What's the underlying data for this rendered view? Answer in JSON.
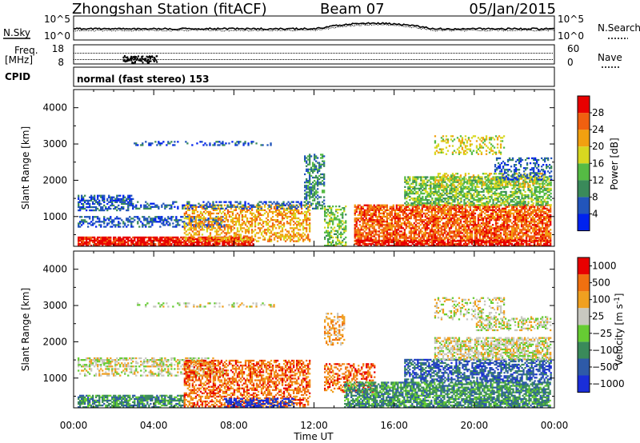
{
  "header": {
    "station": "Zhongshan Station (fitACF)",
    "beam": "Beam 07",
    "date": "05/Jan/2015"
  },
  "noise_panel": {
    "left_label": "N.Sky",
    "left_ticks": [
      "10^5",
      "10^0"
    ],
    "right_ticks": [
      "10^5",
      "10^0"
    ],
    "right_label": "N.Search"
  },
  "freq_panel": {
    "left_label_1": "Freq.",
    "left_label_2": "[MHz]",
    "left_ticks": [
      "18",
      "8"
    ],
    "right_ticks": [
      "60",
      "0"
    ],
    "right_label": "Nave"
  },
  "cpid": {
    "label": "CPID",
    "text": "normal (fast stereo) 153"
  },
  "chart_data": [
    {
      "type": "heatmap",
      "name_label": "Power [dB]",
      "xlabel": "Time UT",
      "ylabel": "Slant Range [km]",
      "x_ticks": [
        "00:00",
        "04:00",
        "08:00",
        "12:00",
        "16:00",
        "20:00",
        "00:00"
      ],
      "xlim_hours": [
        0,
        24
      ],
      "y_ticks": [
        1000,
        2000,
        3000,
        4000
      ],
      "ylim": [
        180,
        4500
      ],
      "colorbar": {
        "label": "Power [dB]",
        "ticks": [
          "4",
          "8",
          "12",
          "16",
          "20",
          "24",
          "28"
        ],
        "colors": [
          "#0022ee",
          "#2255bb",
          "#3a8a5a",
          "#55bb44",
          "#d7d720",
          "#f2a010",
          "#f06010",
          "#e80000"
        ]
      },
      "regions": [
        {
          "t0": 0.2,
          "t1": 3.0,
          "r0": 1150,
          "r1": 1600,
          "level": 1,
          "density": 0.55
        },
        {
          "t0": 0.2,
          "t1": 7.5,
          "r0": 700,
          "r1": 1000,
          "level": 1,
          "density": 0.45
        },
        {
          "t0": 0.2,
          "t1": 9.0,
          "r0": 180,
          "r1": 420,
          "level": 7,
          "density": 0.85
        },
        {
          "t0": 5.5,
          "t1": 11.8,
          "r0": 300,
          "r1": 1300,
          "level": 5,
          "density": 0.5
        },
        {
          "t0": 3.0,
          "t1": 11.5,
          "r0": 1200,
          "r1": 1400,
          "level": 1,
          "density": 0.35
        },
        {
          "t0": 11.5,
          "t1": 12.5,
          "r0": 1200,
          "r1": 2700,
          "level": 2,
          "density": 0.5
        },
        {
          "t0": 12.5,
          "t1": 13.6,
          "r0": 180,
          "r1": 1300,
          "level": 3,
          "density": 0.5
        },
        {
          "t0": 14.0,
          "t1": 23.8,
          "r0": 300,
          "r1": 1300,
          "level": 6,
          "density": 0.75
        },
        {
          "t0": 14.0,
          "t1": 23.8,
          "r0": 180,
          "r1": 350,
          "level": 7,
          "density": 0.8
        },
        {
          "t0": 16.5,
          "t1": 23.8,
          "r0": 1300,
          "r1": 2100,
          "level": 3,
          "density": 0.6
        },
        {
          "t0": 18.0,
          "t1": 23.5,
          "r0": 1800,
          "r1": 2200,
          "level": 4,
          "density": 0.4
        },
        {
          "t0": 21.0,
          "t1": 23.8,
          "r0": 2000,
          "r1": 2600,
          "level": 1,
          "density": 0.35
        },
        {
          "t0": 3.0,
          "t1": 10.0,
          "r0": 2950,
          "r1": 3080,
          "level": 1,
          "density": 0.3
        },
        {
          "t0": 18.0,
          "t1": 21.5,
          "r0": 2700,
          "r1": 3200,
          "level": 4,
          "density": 0.3
        }
      ]
    },
    {
      "type": "heatmap",
      "xlabel": "Time UT",
      "ylabel": "Slant Range [km]",
      "x_ticks": [
        "00:00",
        "04:00",
        "08:00",
        "12:00",
        "16:00",
        "20:00",
        "00:00"
      ],
      "xlim_hours": [
        0,
        24
      ],
      "y_ticks": [
        1000,
        2000,
        3000,
        4000
      ],
      "ylim": [
        180,
        4500
      ],
      "colorbar": {
        "label": "Velocity [m s",
        "label_sup": "-1",
        "label_end": "]",
        "ticks": [
          "1000",
          "500",
          "100",
          "25",
          "−25",
          "−100",
          "−500",
          "−1000"
        ],
        "colors": [
          "#1a2ed8",
          "#2e5aa8",
          "#3a8a5a",
          "#66cc33",
          "#c8c8c0",
          "#f0a020",
          "#f07010",
          "#e80000"
        ]
      },
      "regions": [
        {
          "t0": 0.2,
          "t1": 7.0,
          "r0": 1300,
          "r1": 1550,
          "level": 4,
          "density": 0.55
        },
        {
          "t0": 0.2,
          "t1": 7.5,
          "r0": 1050,
          "r1": 1250,
          "level": 4,
          "density": 0.45
        },
        {
          "t0": 0.2,
          "t1": 5.5,
          "r0": 180,
          "r1": 500,
          "level": 2,
          "density": 0.7
        },
        {
          "t0": 5.5,
          "t1": 11.8,
          "r0": 200,
          "r1": 1500,
          "level": 6,
          "density": 0.55
        },
        {
          "t0": 7.5,
          "t1": 11.0,
          "r0": 180,
          "r1": 450,
          "level": 0,
          "density": 0.5
        },
        {
          "t0": 12.5,
          "t1": 15.0,
          "r0": 600,
          "r1": 1400,
          "level": 6,
          "density": 0.5
        },
        {
          "t0": 13.5,
          "t1": 23.8,
          "r0": 180,
          "r1": 900,
          "level": 2,
          "density": 0.75
        },
        {
          "t0": 16.5,
          "t1": 23.8,
          "r0": 900,
          "r1": 1500,
          "level": 1,
          "density": 0.6
        },
        {
          "t0": 18.0,
          "t1": 23.8,
          "r0": 1500,
          "r1": 2100,
          "level": 4,
          "density": 0.65
        },
        {
          "t0": 20.0,
          "t1": 23.8,
          "r0": 2300,
          "r1": 2700,
          "level": 4,
          "density": 0.4
        },
        {
          "t0": 12.5,
          "t1": 13.5,
          "r0": 1900,
          "r1": 2800,
          "level": 5,
          "density": 0.4
        },
        {
          "t0": 3.0,
          "t1": 10.0,
          "r0": 2950,
          "r1": 3080,
          "level": 4,
          "density": 0.25
        },
        {
          "t0": 18.0,
          "t1": 21.5,
          "r0": 2600,
          "r1": 3200,
          "level": 4,
          "density": 0.3
        }
      ]
    }
  ]
}
